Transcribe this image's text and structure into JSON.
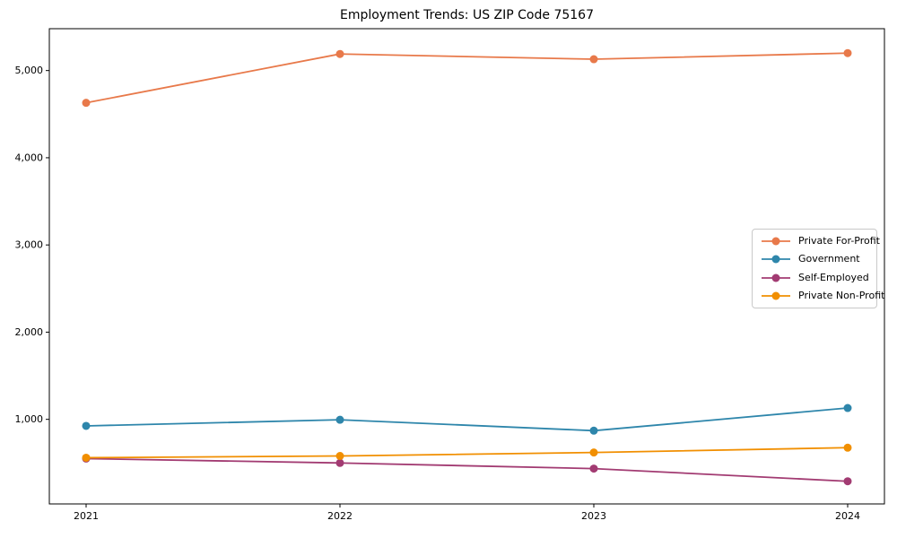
{
  "chart_data": {
    "type": "line",
    "title": "Employment Trends: US ZIP Code 75167",
    "categories": [
      "2021",
      "2022",
      "2023",
      "2024"
    ],
    "series": [
      {
        "name": "Private For-Profit",
        "color": "#E8794A",
        "values": [
          4630,
          5190,
          5130,
          5200
        ]
      },
      {
        "name": "Government",
        "color": "#2E86AB",
        "values": [
          925,
          995,
          870,
          1130
        ]
      },
      {
        "name": "Self-Employed",
        "color": "#A23B72",
        "values": [
          550,
          500,
          435,
          290
        ]
      },
      {
        "name": "Private Non-Profit",
        "color": "#F18F01",
        "values": [
          560,
          580,
          620,
          675
        ]
      }
    ],
    "xlabel": "",
    "ylabel": "",
    "ylim": [
      30,
      5480
    ],
    "yticks": [
      1000,
      2000,
      3000,
      4000,
      5000
    ],
    "ytick_labels": [
      "1,000",
      "2,000",
      "3,000",
      "4,000",
      "5,000"
    ],
    "grid": false,
    "legend_position": "center-right",
    "axis_color": "#000000",
    "background_color": "#ffffff"
  }
}
